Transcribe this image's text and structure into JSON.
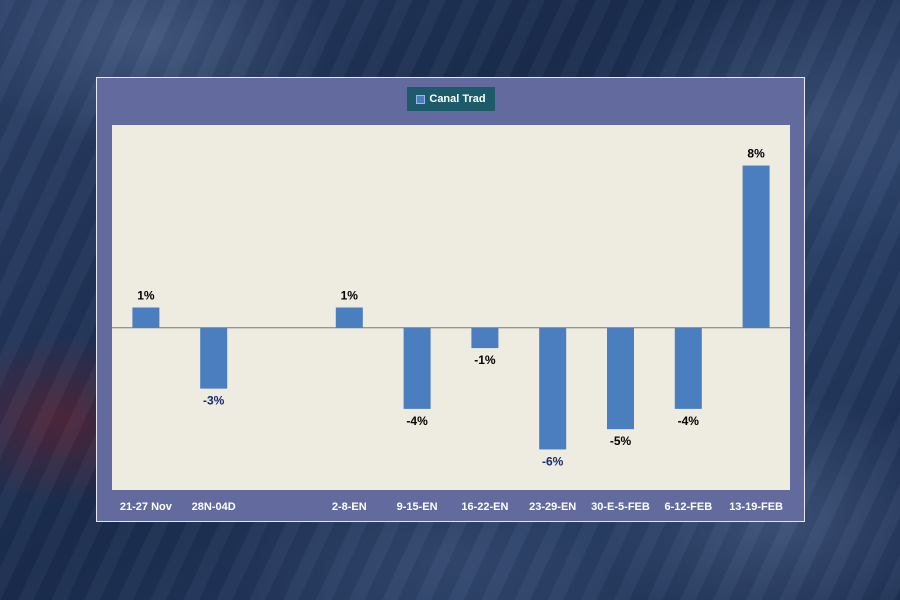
{
  "chart_data": {
    "type": "bar",
    "categories": [
      "21-27 Nov",
      "28N-04D",
      "",
      "2-8-EN",
      "9-15-EN",
      "16-22-EN",
      "23-29-EN",
      "30-E-5-FEB",
      "6-12-FEB",
      "13-19-FEB"
    ],
    "series": [
      {
        "name": "Canal Trad",
        "values": [
          1,
          -3,
          null,
          1,
          -4,
          -1,
          -6,
          -5,
          -4,
          8
        ],
        "labels": [
          "1%",
          "-3%",
          "",
          "1%",
          "-4%",
          "-1%",
          "-6%",
          "-5%",
          "-4%",
          "8%"
        ],
        "label_colors": [
          "#000000",
          "#1a2a6c",
          "",
          "#000000",
          "#000000",
          "#000000",
          "#1a2a6c",
          "#000000",
          "#000000",
          "#000000"
        ]
      }
    ],
    "ylim": [
      -8,
      10
    ],
    "colors": {
      "bar": "#4a7ebf",
      "plot_bg": "#eeebe1",
      "frame_bg": "#636b9e",
      "legend_bg": "#1d5b6b"
    },
    "legend": "top-center",
    "grid": false
  }
}
